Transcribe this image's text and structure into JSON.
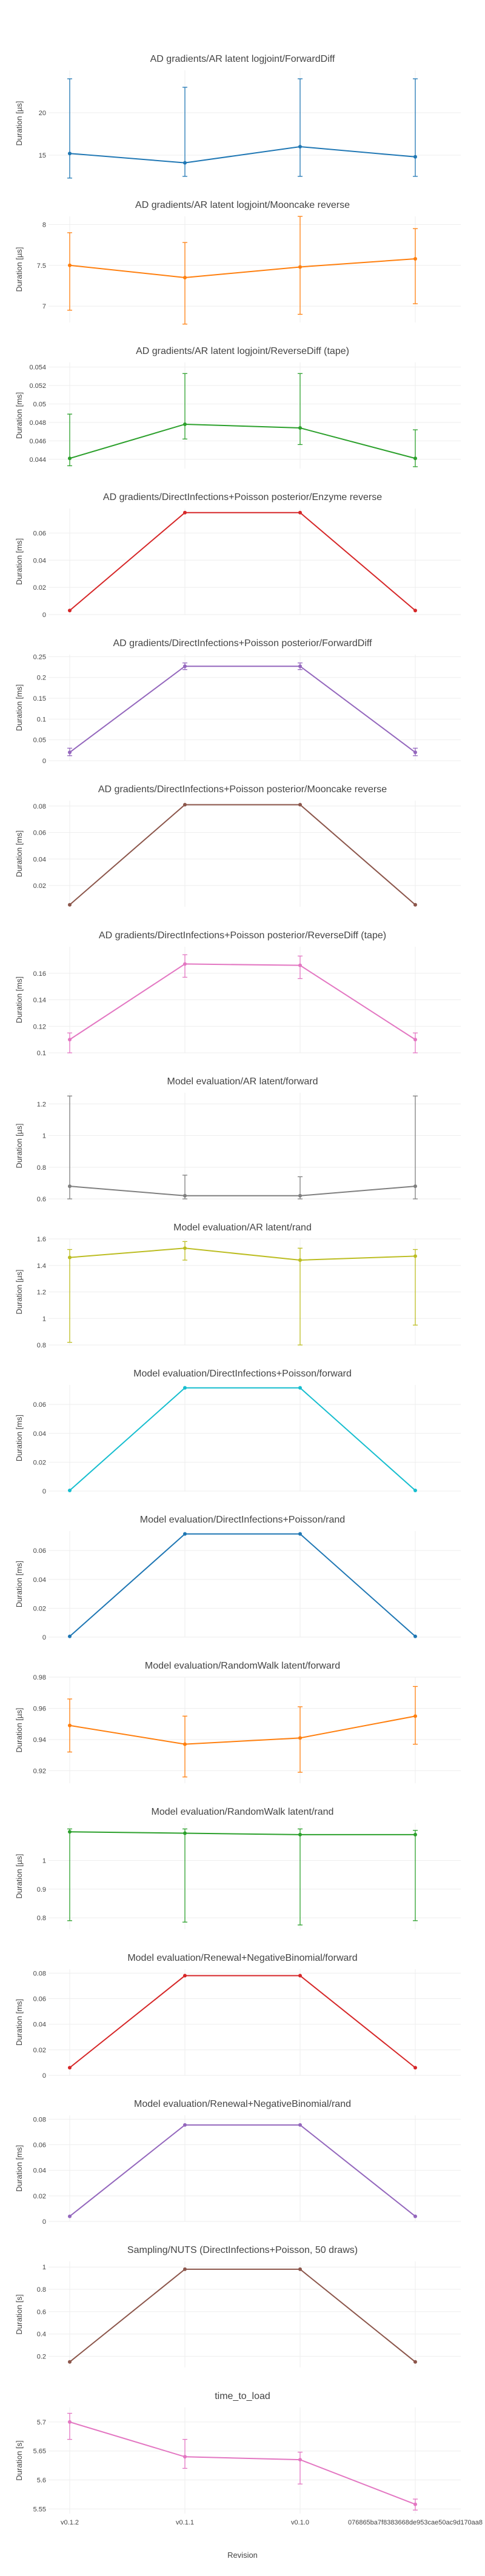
{
  "x_axis_title": "Revision",
  "chart_data": [
    {
      "type": "line",
      "title": "AD gradients/AR latent logjoint/ForwardDiff",
      "ylabel": "Duration [µs]",
      "color": "#1f77b4",
      "categories": [
        "v0.1.2",
        "v0.1.1",
        "v0.1.0",
        "076865ba7f8383668de953cae50ac9d170aa8"
      ],
      "values": [
        15.2,
        14.1,
        16.0,
        14.8
      ],
      "err_low": [
        12.3,
        12.5,
        12.5,
        12.5
      ],
      "err_high": [
        24.0,
        23.0,
        24.0,
        24.0
      ],
      "ylim": [
        12.5,
        25
      ],
      "yticks": [
        15,
        20
      ],
      "tick_labels": [
        "15",
        "20"
      ]
    },
    {
      "type": "line",
      "title": "AD gradients/AR latent logjoint/Mooncake reverse",
      "ylabel": "Duration [µs]",
      "color": "#ff7f0e",
      "categories": [
        "v0.1.2",
        "v0.1.1",
        "v0.1.0",
        "076865ba7f8383668de953cae50ac9d170aa8"
      ],
      "values": [
        7.5,
        7.35,
        7.48,
        7.58
      ],
      "err_low": [
        6.95,
        6.78,
        6.9,
        7.03
      ],
      "err_high": [
        7.9,
        7.78,
        8.1,
        7.95
      ],
      "ylim": [
        6.8,
        8.1
      ],
      "yticks": [
        7,
        7.5,
        8
      ],
      "tick_labels": [
        "7",
        "7.5",
        "8"
      ]
    },
    {
      "type": "line",
      "title": "AD gradients/AR latent logjoint/ReverseDiff (tape)",
      "ylabel": "Duration [ms]",
      "color": "#2ca02c",
      "categories": [
        "v0.1.2",
        "v0.1.1",
        "v0.1.0",
        "076865ba7f8383668de953cae50ac9d170aa8"
      ],
      "values": [
        0.0441,
        0.0478,
        0.0474,
        0.0441
      ],
      "err_low": [
        0.0433,
        0.0462,
        0.0456,
        0.0432
      ],
      "err_high": [
        0.0489,
        0.0533,
        0.0533,
        0.0472
      ],
      "ylim": [
        0.043,
        0.0545
      ],
      "yticks": [
        0.044,
        0.046,
        0.048,
        0.05,
        0.052,
        0.054
      ],
      "tick_labels": [
        "0.044",
        "0.046",
        "0.048",
        "0.05",
        "0.052",
        "0.054"
      ]
    },
    {
      "type": "line",
      "title": "AD gradients/DirectInfections+Poisson posterior/Enzyme reverse",
      "ylabel": "Duration [ms]",
      "color": "#d62728",
      "categories": [
        "v0.1.2",
        "v0.1.1",
        "v0.1.0",
        "076865ba7f8383668de953cae50ac9d170aa8"
      ],
      "values": [
        0.003,
        0.075,
        0.075,
        0.003
      ],
      "err_low": [
        0.003,
        0.075,
        0.075,
        0.003
      ],
      "err_high": [
        0.003,
        0.075,
        0.075,
        0.003
      ],
      "ylim": [
        0,
        0.078
      ],
      "yticks": [
        0,
        0.02,
        0.04,
        0.06
      ],
      "tick_labels": [
        "0",
        "0.02",
        "0.04",
        "0.06"
      ]
    },
    {
      "type": "line",
      "title": "AD gradients/DirectInfections+Poisson posterior/ForwardDiff",
      "ylabel": "Duration [ms]",
      "color": "#9467bd",
      "categories": [
        "v0.1.2",
        "v0.1.1",
        "v0.1.0",
        "076865ba7f8383668de953cae50ac9d170aa8"
      ],
      "values": [
        0.02,
        0.227,
        0.227,
        0.02
      ],
      "err_low": [
        0.012,
        0.219,
        0.219,
        0.012
      ],
      "err_high": [
        0.03,
        0.235,
        0.235,
        0.03
      ],
      "ylim": [
        0,
        0.255
      ],
      "yticks": [
        0,
        0.05,
        0.1,
        0.15,
        0.2,
        0.25
      ],
      "tick_labels": [
        "0",
        "0.05",
        "0.1",
        "0.15",
        "0.2",
        "0.25"
      ]
    },
    {
      "type": "line",
      "title": "AD gradients/DirectInfections+Poisson posterior/Mooncake reverse",
      "ylabel": "Duration [ms]",
      "color": "#8c564b",
      "categories": [
        "v0.1.2",
        "v0.1.1",
        "v0.1.0",
        "076865ba7f8383668de953cae50ac9d170aa8"
      ],
      "values": [
        0.0055,
        0.081,
        0.081,
        0.0055
      ],
      "err_low": [
        0.0055,
        0.081,
        0.081,
        0.0055
      ],
      "err_high": [
        0.0055,
        0.081,
        0.081,
        0.0055
      ],
      "ylim": [
        0.004,
        0.084
      ],
      "yticks": [
        0.02,
        0.04,
        0.06,
        0.08
      ],
      "tick_labels": [
        "0.02",
        "0.04",
        "0.06",
        "0.08"
      ]
    },
    {
      "type": "line",
      "title": "AD gradients/DirectInfections+Poisson posterior/ReverseDiff (tape)",
      "ylabel": "Duration [ms]",
      "color": "#e377c2",
      "categories": [
        "v0.1.2",
        "v0.1.1",
        "v0.1.0",
        "076865ba7f8383668de953cae50ac9d170aa8"
      ],
      "values": [
        0.11,
        0.167,
        0.166,
        0.11
      ],
      "err_low": [
        0.1,
        0.157,
        0.156,
        0.1
      ],
      "err_high": [
        0.115,
        0.174,
        0.173,
        0.115
      ],
      "ylim": [
        0.1,
        0.18
      ],
      "yticks": [
        0.1,
        0.12,
        0.14,
        0.16
      ],
      "tick_labels": [
        "0.1",
        "0.12",
        "0.14",
        "0.16"
      ]
    },
    {
      "type": "line",
      "title": "Model evaluation/AR latent/forward",
      "ylabel": "Duration [µs]",
      "color": "#7f7f7f",
      "categories": [
        "v0.1.2",
        "v0.1.1",
        "v0.1.0",
        "076865ba7f8383668de953cae50ac9d170aa8"
      ],
      "values": [
        0.68,
        0.62,
        0.62,
        0.68
      ],
      "err_low": [
        0.6,
        0.6,
        0.6,
        0.6
      ],
      "err_high": [
        1.25,
        0.75,
        0.74,
        1.25
      ],
      "ylim": [
        0.6,
        1.27
      ],
      "yticks": [
        0.6,
        0.8,
        1,
        1.2
      ],
      "tick_labels": [
        "0.6",
        "0.8",
        "1",
        "1.2"
      ]
    },
    {
      "type": "line",
      "title": "Model evaluation/AR latent/rand",
      "ylabel": "Duration [µs]",
      "color": "#bcbd22",
      "categories": [
        "v0.1.2",
        "v0.1.1",
        "v0.1.0",
        "076865ba7f8383668de953cae50ac9d170aa8"
      ],
      "values": [
        1.46,
        1.53,
        1.44,
        1.47
      ],
      "err_low": [
        0.82,
        1.44,
        0.8,
        0.95
      ],
      "err_high": [
        1.52,
        1.58,
        1.53,
        1.52
      ],
      "ylim": [
        0.8,
        1.6
      ],
      "yticks": [
        0.8,
        1,
        1.2,
        1.4,
        1.6
      ],
      "tick_labels": [
        "0.8",
        "1",
        "1.2",
        "1.4",
        "1.6"
      ]
    },
    {
      "type": "line",
      "title": "Model evaluation/DirectInfections+Poisson/forward",
      "ylabel": "Duration [ms]",
      "color": "#17becf",
      "categories": [
        "v0.1.2",
        "v0.1.1",
        "v0.1.0",
        "076865ba7f8383668de953cae50ac9d170aa8"
      ],
      "values": [
        0.0004,
        0.0715,
        0.0715,
        0.0004
      ],
      "err_low": [
        0.0004,
        0.0715,
        0.0715,
        0.0004
      ],
      "err_high": [
        0.0004,
        0.0715,
        0.0715,
        0.0004
      ],
      "ylim": [
        0,
        0.0735
      ],
      "yticks": [
        0,
        0.02,
        0.04,
        0.06
      ],
      "tick_labels": [
        "0",
        "0.02",
        "0.04",
        "0.06"
      ]
    },
    {
      "type": "line",
      "title": "Model evaluation/DirectInfections+Poisson/rand",
      "ylabel": "Duration [ms]",
      "color": "#1f77b4",
      "categories": [
        "v0.1.2",
        "v0.1.1",
        "v0.1.0",
        "076865ba7f8383668de953cae50ac9d170aa8"
      ],
      "values": [
        0.0005,
        0.0715,
        0.0715,
        0.0005
      ],
      "err_low": [
        0.0005,
        0.0715,
        0.0715,
        0.0005
      ],
      "err_high": [
        0.0005,
        0.0715,
        0.0715,
        0.0005
      ],
      "ylim": [
        0,
        0.0735
      ],
      "yticks": [
        0,
        0.02,
        0.04,
        0.06
      ],
      "tick_labels": [
        "0",
        "0.02",
        "0.04",
        "0.06"
      ]
    },
    {
      "type": "line",
      "title": "Model evaluation/RandomWalk latent/forward",
      "ylabel": "Duration [µs]",
      "color": "#ff7f0e",
      "categories": [
        "v0.1.2",
        "v0.1.1",
        "v0.1.0",
        "076865ba7f8383668de953cae50ac9d170aa8"
      ],
      "values": [
        0.949,
        0.937,
        0.941,
        0.955
      ],
      "err_low": [
        0.932,
        0.916,
        0.919,
        0.937
      ],
      "err_high": [
        0.966,
        0.955,
        0.961,
        0.974
      ],
      "ylim": [
        0.912,
        0.98
      ],
      "yticks": [
        0.92,
        0.94,
        0.96,
        0.98
      ],
      "tick_labels": [
        "0.92",
        "0.94",
        "0.96",
        "0.98"
      ]
    },
    {
      "type": "line",
      "title": "Model evaluation/RandomWalk latent/rand",
      "ylabel": "Duration [µs]",
      "color": "#2ca02c",
      "categories": [
        "v0.1.2",
        "v0.1.1",
        "v0.1.0",
        "076865ba7f8383668de953cae50ac9d170aa8"
      ],
      "values": [
        1.1,
        1.095,
        1.09,
        1.09
      ],
      "err_low": [
        0.79,
        0.785,
        0.775,
        0.79
      ],
      "err_high": [
        1.11,
        1.11,
        1.11,
        1.105
      ],
      "ylim": [
        0.76,
        1.13
      ],
      "yticks": [
        0.8,
        0.9,
        1
      ],
      "tick_labels": [
        "0.8",
        "0.9",
        "1"
      ]
    },
    {
      "type": "line",
      "title": "Model evaluation/Renewal+NegativeBinomial/forward",
      "ylabel": "Duration [ms]",
      "color": "#d62728",
      "categories": [
        "v0.1.2",
        "v0.1.1",
        "v0.1.0",
        "076865ba7f8383668de953cae50ac9d170aa8"
      ],
      "values": [
        0.006,
        0.078,
        0.078,
        0.006
      ],
      "err_low": [
        0.006,
        0.078,
        0.078,
        0.006
      ],
      "err_high": [
        0.006,
        0.078,
        0.078,
        0.006
      ],
      "ylim": [
        0,
        0.083
      ],
      "yticks": [
        0,
        0.02,
        0.04,
        0.06,
        0.08
      ],
      "tick_labels": [
        "0",
        "0.02",
        "0.04",
        "0.06",
        "0.08"
      ]
    },
    {
      "type": "line",
      "title": "Model evaluation/Renewal+NegativeBinomial/rand",
      "ylabel": "Duration [ms]",
      "color": "#9467bd",
      "categories": [
        "v0.1.2",
        "v0.1.1",
        "v0.1.0",
        "076865ba7f8383668de953cae50ac9d170aa8"
      ],
      "values": [
        0.004,
        0.0755,
        0.0755,
        0.004
      ],
      "err_low": [
        0.004,
        0.0755,
        0.0755,
        0.004
      ],
      "err_high": [
        0.004,
        0.0755,
        0.0755,
        0.004
      ],
      "ylim": [
        0,
        0.083
      ],
      "yticks": [
        0,
        0.02,
        0.04,
        0.06,
        0.08
      ],
      "tick_labels": [
        "0",
        "0.02",
        "0.04",
        "0.06",
        "0.08"
      ]
    },
    {
      "type": "line",
      "title": "Sampling/NUTS (DirectInfections+Poisson, 50 draws)",
      "ylabel": "Duration [s]",
      "color": "#8c564b",
      "categories": [
        "v0.1.2",
        "v0.1.1",
        "v0.1.0",
        "076865ba7f8383668de953cae50ac9d170aa8"
      ],
      "values": [
        0.15,
        0.98,
        0.98,
        0.15
      ],
      "err_low": [
        0.15,
        0.98,
        0.98,
        0.15
      ],
      "err_high": [
        0.15,
        0.98,
        0.98,
        0.15
      ],
      "ylim": [
        0.1,
        1.05
      ],
      "yticks": [
        0.2,
        0.4,
        0.6,
        0.8,
        1
      ],
      "tick_labels": [
        "0.2",
        "0.4",
        "0.6",
        "0.8",
        "1"
      ]
    },
    {
      "type": "line",
      "title": "time_to_load",
      "ylabel": "Duration [s]",
      "color": "#e377c2",
      "categories": [
        "v0.1.2",
        "v0.1.1",
        "v0.1.0",
        "076865ba7f8383668de953cae50ac9d170aa8"
      ],
      "values": [
        5.7,
        5.64,
        5.635,
        5.558
      ],
      "err_low": [
        5.67,
        5.62,
        5.593,
        5.548
      ],
      "err_high": [
        5.715,
        5.67,
        5.648,
        5.567
      ],
      "ylim": [
        5.542,
        5.725
      ],
      "yticks": [
        5.55,
        5.6,
        5.65,
        5.7
      ],
      "tick_labels": [
        "5.55",
        "5.6",
        "5.65",
        "5.7"
      ]
    }
  ]
}
